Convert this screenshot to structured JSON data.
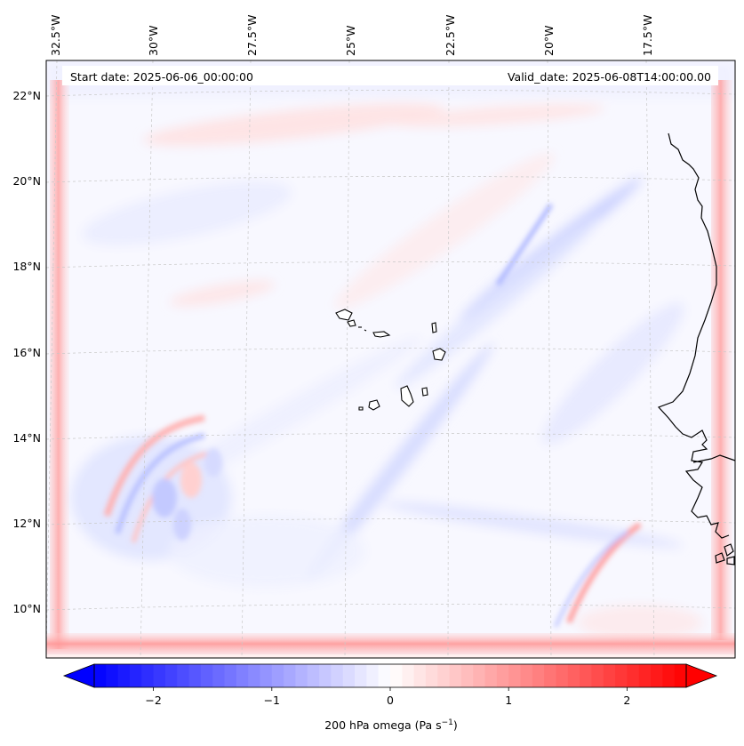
{
  "header": {
    "start_date": "Start date: 2025-06-06_00:00:00",
    "valid_date": "Valid_date: 2025-06-08T14:00:00.00"
  },
  "map": {
    "top_lon_labels": [
      "32.5°W",
      "30°W",
      "27.5°W",
      "25°W",
      "22.5°W",
      "20°W",
      "17.5°W"
    ],
    "left_lat_labels": [
      "22°N",
      "20°N",
      "18°N",
      "16°N",
      "14°N",
      "12°N",
      "10°N"
    ],
    "field_colors": {
      "negative": "#2f3cff",
      "positive": "#ff3030",
      "coast": "#000000"
    }
  },
  "colorbar": {
    "label_main": "200 hPa omega (Pa s",
    "label_sup": "−1",
    "label_end": ")",
    "ticks": [
      {
        "value": -2,
        "label": "−2"
      },
      {
        "value": -1,
        "label": "−1"
      },
      {
        "value": 0,
        "label": "0"
      },
      {
        "value": 1,
        "label": "1"
      },
      {
        "value": 2,
        "label": "2"
      }
    ],
    "range": [
      -2.5,
      2.5
    ],
    "levels": 50,
    "extend": "both",
    "colormap": "bwr"
  }
}
